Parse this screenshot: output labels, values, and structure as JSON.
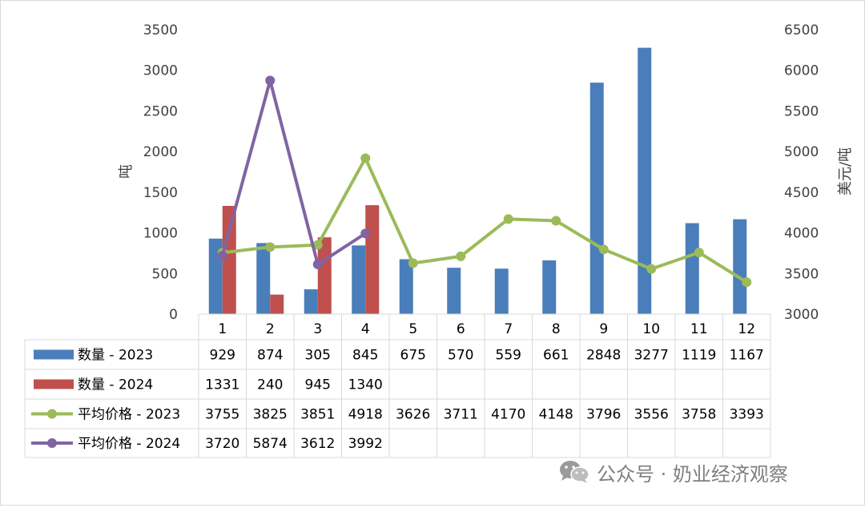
{
  "chart_data": {
    "type": "bar",
    "categories": [
      "1",
      "2",
      "3",
      "4",
      "5",
      "6",
      "7",
      "8",
      "9",
      "10",
      "11",
      "12"
    ],
    "series": [
      {
        "name": "数量 - 2023",
        "kind": "bar",
        "axis": "left",
        "color": "#4a7ebb",
        "values": [
          929,
          874,
          305,
          845,
          675,
          570,
          559,
          661,
          2848,
          3277,
          1119,
          1167
        ]
      },
      {
        "name": "数量 - 2024",
        "kind": "bar",
        "axis": "left",
        "color": "#c0504d",
        "values": [
          1331,
          240,
          945,
          1340,
          null,
          null,
          null,
          null,
          null,
          null,
          null,
          null
        ]
      },
      {
        "name": "平均价格 - 2023",
        "kind": "line",
        "axis": "right",
        "color": "#9bbb59",
        "values": [
          3755,
          3825,
          3851,
          4918,
          3626,
          3711,
          4170,
          4148,
          3796,
          3556,
          3758,
          3393
        ]
      },
      {
        "name": "平均价格 - 2024",
        "kind": "line",
        "axis": "right",
        "color": "#8064a2",
        "values": [
          3720,
          5874,
          3612,
          3992,
          null,
          null,
          null,
          null,
          null,
          null,
          null,
          null
        ]
      }
    ],
    "y_left": {
      "label": "吨",
      "ylim": [
        0,
        3500
      ],
      "ticks": [
        0,
        500,
        1000,
        1500,
        2000,
        2500,
        3000,
        3500
      ]
    },
    "y_right": {
      "label": "美元/吨",
      "ylim": [
        3000,
        6500
      ],
      "ticks": [
        3000,
        3500,
        4000,
        4500,
        5000,
        5500,
        6000,
        6500
      ]
    },
    "data_table": true,
    "grid": false
  },
  "watermark": {
    "text": "公众号 · 奶业经济观察",
    "icon": "wechat-icon"
  }
}
